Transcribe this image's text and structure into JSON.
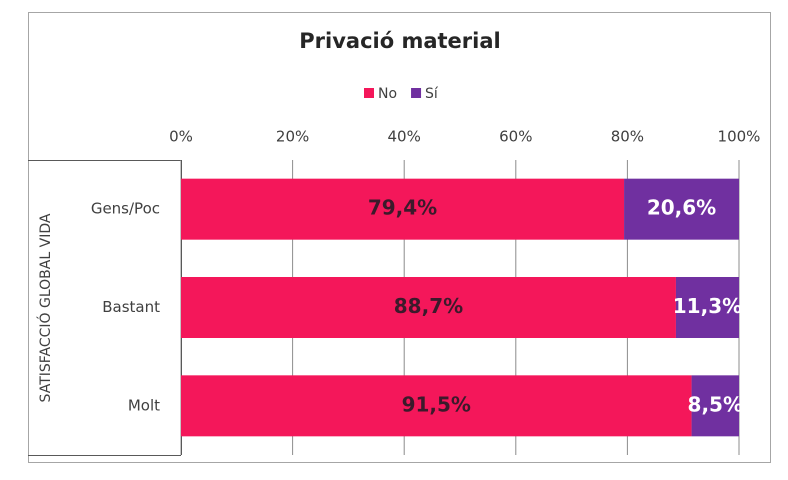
{
  "chart_data": {
    "type": "stacked_bar_horizontal",
    "title": "Privació material",
    "y_axis_label": "SATISFACCIÓ GLOBAL VIDA",
    "categories": [
      "Gens/Poc",
      "Bastant",
      "Molt"
    ],
    "series": [
      {
        "name": "No",
        "color": "#f4175a",
        "values": [
          79.4,
          88.7,
          91.5
        ],
        "value_labels": [
          "79,4%",
          "88,7%",
          "91,5%"
        ]
      },
      {
        "name": "Sí",
        "color": "#7030a0",
        "values": [
          20.6,
          11.3,
          8.5
        ],
        "value_labels": [
          "20,6%",
          "11,3%",
          "8,5%"
        ]
      }
    ],
    "xlim": [
      0,
      100
    ],
    "xticks": [
      {
        "value": 0,
        "label": "0%"
      },
      {
        "value": 20,
        "label": "20%"
      },
      {
        "value": 40,
        "label": "40%"
      },
      {
        "value": 60,
        "label": "60%"
      },
      {
        "value": 80,
        "label": "80%"
      },
      {
        "value": 100,
        "label": "100%"
      }
    ],
    "grid": true,
    "legend": "top"
  }
}
